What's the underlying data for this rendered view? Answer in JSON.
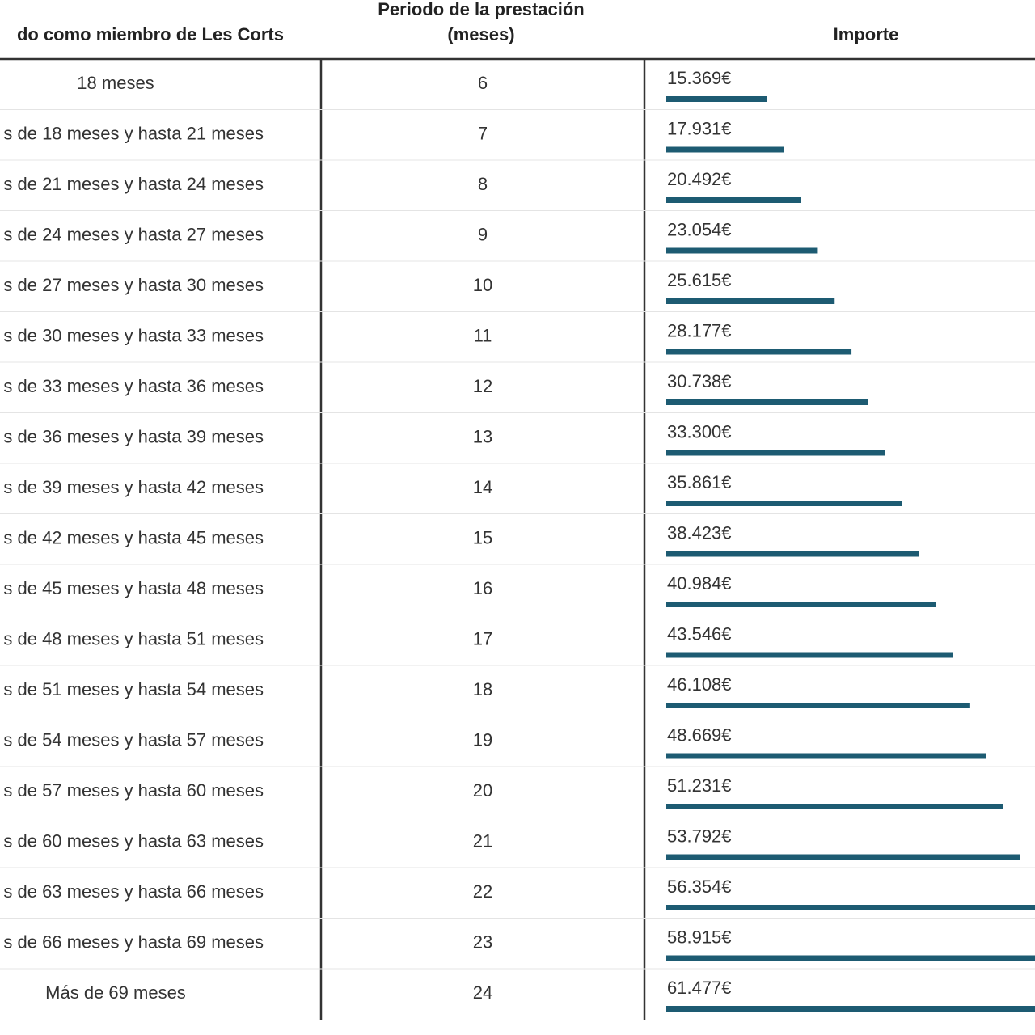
{
  "table": {
    "header": [
      "do como miembro de Les Corts",
      [
        "Periodo de la prestación",
        "(meses)"
      ],
      "Importe"
    ],
    "rows": [
      [
        "18 meses",
        6,
        {
          "value": 15369,
          "label": "15.369€"
        }
      ],
      [
        "s de 18 meses y hasta 21 meses",
        7,
        {
          "value": 17931,
          "label": "17.931€"
        }
      ],
      [
        "s de 21 meses y hasta 24 meses",
        8,
        {
          "value": 20492,
          "label": "20.492€"
        }
      ],
      [
        "s de 24 meses y hasta 27 meses",
        9,
        {
          "value": 23054,
          "label": "23.054€"
        }
      ],
      [
        "s de 27 meses y hasta 30 meses",
        10,
        {
          "value": 25615,
          "label": "25.615€"
        }
      ],
      [
        "s de 30 meses y hasta 33 meses",
        11,
        {
          "value": 28177,
          "label": "28.177€"
        }
      ],
      [
        "s de 33 meses y hasta 36 meses",
        12,
        {
          "value": 30738,
          "label": "30.738€"
        }
      ],
      [
        "s de 36 meses y hasta 39 meses",
        13,
        {
          "value": 33300,
          "label": "33.300€"
        }
      ],
      [
        "s de 39 meses y hasta 42 meses",
        14,
        {
          "value": 35861,
          "label": "35.861€"
        }
      ],
      [
        "s de 42 meses y hasta 45 meses",
        15,
        {
          "value": 38423,
          "label": "38.423€"
        }
      ],
      [
        "s de 45 meses y hasta 48 meses",
        16,
        {
          "value": 40984,
          "label": "40.984€"
        }
      ],
      [
        "s de 48 meses y hasta 51 meses",
        17,
        {
          "value": 43546,
          "label": "43.546€"
        }
      ],
      [
        "s de 51 meses y hasta 54 meses",
        18,
        {
          "value": 46108,
          "label": "46.108€"
        }
      ],
      [
        "s de 54 meses y hasta 57 meses",
        19,
        {
          "value": 48669,
          "label": "48.669€"
        }
      ],
      [
        "s de 57 meses y hasta 60 meses",
        20,
        {
          "value": 51231,
          "label": "51.231€"
        }
      ],
      [
        "s de 60 meses y hasta 63 meses",
        21,
        {
          "value": 53792,
          "label": "53.792€"
        }
      ],
      [
        "s de 63 meses y hasta 66 meses",
        22,
        {
          "value": 56354,
          "label": "56.354€"
        }
      ],
      [
        "s de 66 meses y hasta 69 meses",
        23,
        {
          "value": 58915,
          "label": "58.915€"
        }
      ],
      [
        "Más de 69 meses",
        24,
        {
          "value": 61477,
          "label": "61.477€"
        }
      ]
    ]
  }
}
